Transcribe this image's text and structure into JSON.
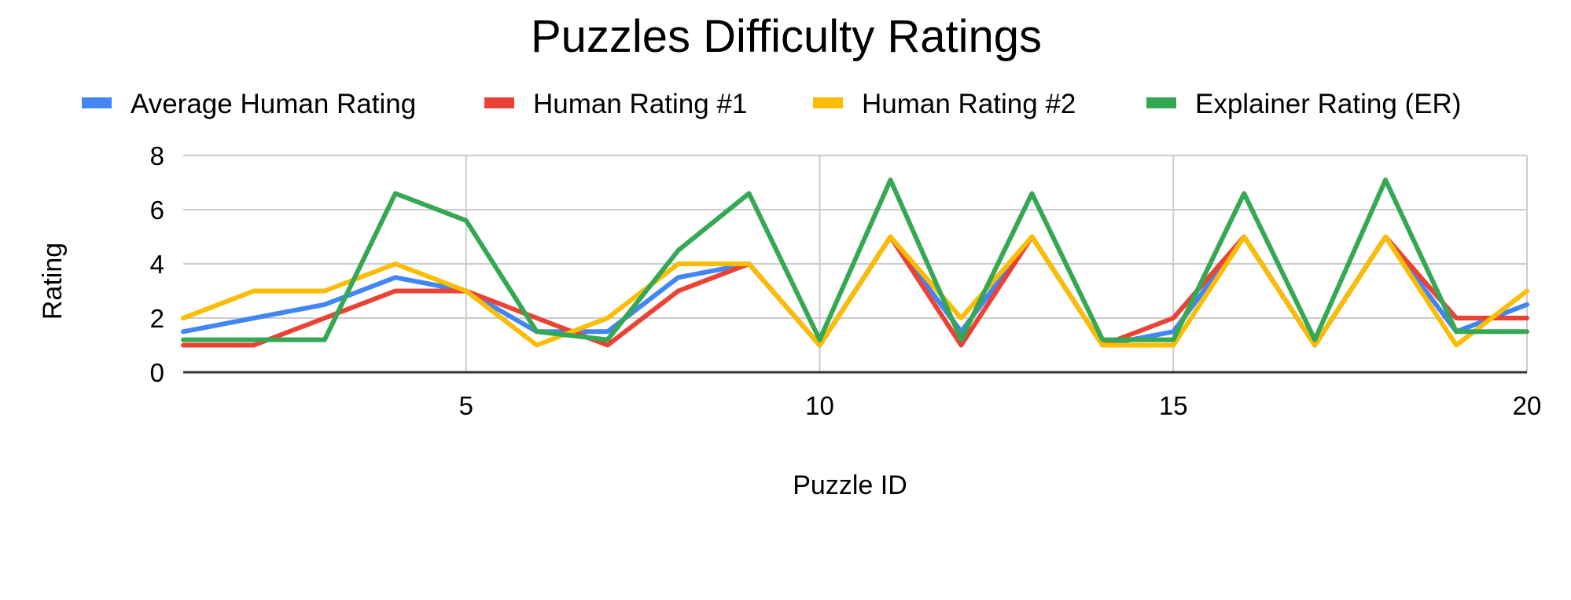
{
  "chart_data": {
    "type": "line",
    "title": "Puzzles Difficulty Ratings",
    "xlabel": "Puzzle ID",
    "ylabel": "Rating",
    "xlim": [
      1,
      20
    ],
    "ylim": [
      0,
      8
    ],
    "x_ticks": [
      5,
      10,
      15,
      20
    ],
    "y_ticks": [
      0,
      2,
      4,
      6,
      8
    ],
    "grid": true,
    "legend_position": "top",
    "x": [
      1,
      2,
      3,
      4,
      5,
      6,
      7,
      8,
      9,
      10,
      11,
      12,
      13,
      14,
      15,
      16,
      17,
      18,
      19,
      20
    ],
    "series": [
      {
        "name": "Average Human Rating",
        "color": "#4285F4",
        "values": [
          1.5,
          2,
          2.5,
          3.5,
          3,
          1.5,
          1.5,
          3.5,
          4,
          1,
          5,
          1.5,
          5,
          1,
          1.5,
          5,
          1,
          5,
          1.5,
          2.5
        ]
      },
      {
        "name": "Human Rating #1",
        "color": "#EA4335",
        "values": [
          1,
          1,
          2,
          3,
          3,
          2,
          1,
          3,
          4,
          1,
          5,
          1,
          5,
          1,
          2,
          5,
          1,
          5,
          2,
          2
        ]
      },
      {
        "name": "Human Rating #2",
        "color": "#FBBC04",
        "values": [
          2,
          3,
          3,
          4,
          3,
          1,
          2,
          4,
          4,
          1,
          5,
          2,
          5,
          1,
          1,
          5,
          1,
          5,
          1,
          3
        ]
      },
      {
        "name": "Explainer Rating (ER)",
        "color": "#34A853",
        "values": [
          1.2,
          1.2,
          1.2,
          6.6,
          5.6,
          1.5,
          1.2,
          4.5,
          6.6,
          1.2,
          7.1,
          1.2,
          6.6,
          1.2,
          1.2,
          6.6,
          1.2,
          7.1,
          1.5,
          1.5
        ]
      }
    ]
  }
}
